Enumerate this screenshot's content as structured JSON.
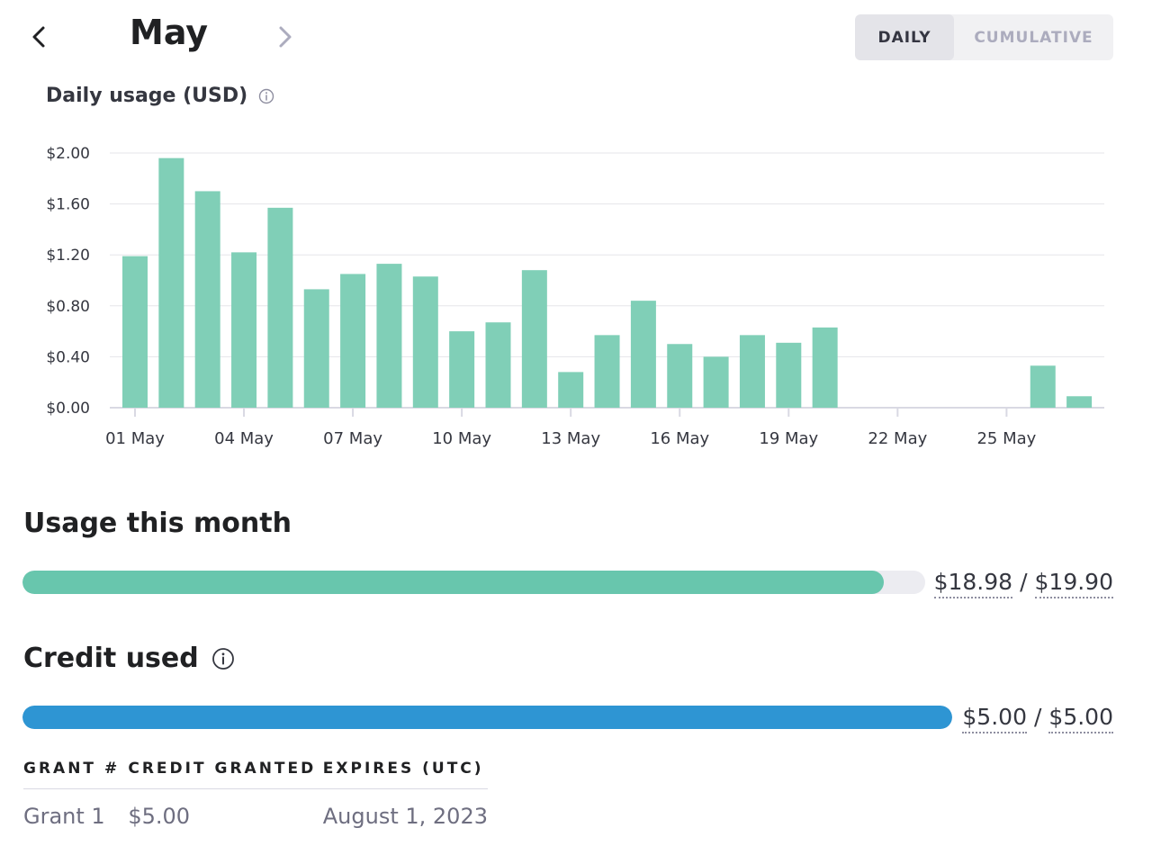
{
  "header": {
    "month": "May",
    "prev_icon": "chevron-left-icon",
    "next_icon": "chevron-right-icon",
    "view_toggle": {
      "daily_label": "DAILY",
      "cumulative_label": "CUMULATIVE",
      "selected": "DAILY"
    }
  },
  "chart_section": {
    "title": "Daily usage (USD)",
    "info_icon": "info-icon"
  },
  "chart_data": {
    "type": "bar",
    "title": "Daily usage (USD)",
    "xlabel": "",
    "ylabel": "",
    "ylim": [
      0,
      2.0
    ],
    "y_ticks": [
      "$0.00",
      "$0.40",
      "$0.80",
      "$1.20",
      "$1.60",
      "$2.00"
    ],
    "y_tick_values": [
      0,
      0.4,
      0.8,
      1.2,
      1.6,
      2.0
    ],
    "x_tick_labels": [
      "01 May",
      "04 May",
      "07 May",
      "10 May",
      "13 May",
      "16 May",
      "19 May",
      "22 May",
      "25 May"
    ],
    "x_tick_days": [
      1,
      4,
      7,
      10,
      13,
      16,
      19,
      22,
      25
    ],
    "days": [
      1,
      2,
      3,
      4,
      5,
      6,
      7,
      8,
      9,
      10,
      11,
      12,
      13,
      14,
      15,
      16,
      17,
      18,
      19,
      20,
      21,
      22,
      23,
      24,
      25,
      26,
      27
    ],
    "values": [
      1.19,
      1.96,
      1.7,
      1.22,
      1.57,
      0.93,
      1.05,
      1.13,
      1.03,
      0.6,
      0.67,
      1.08,
      0.28,
      0.57,
      0.84,
      0.5,
      0.4,
      0.57,
      0.51,
      0.63,
      0,
      0,
      0,
      0,
      0,
      0.33,
      0.09
    ],
    "grid": true,
    "bar_color": "#80cfb7"
  },
  "usage": {
    "title": "Usage this month",
    "used": "$18.98",
    "limit": "$19.90",
    "separator": "/",
    "fraction": 0.9538,
    "bar_color": "#68c6ad"
  },
  "credit": {
    "title": "Credit used",
    "info_icon": "info-icon",
    "used": "$5.00",
    "total": "$5.00",
    "separator": "/",
    "fraction": 1.0,
    "bar_color": "#2e95d3"
  },
  "grants": {
    "headers": [
      "GRANT #",
      "CREDIT GRANTED",
      "EXPIRES (UTC)"
    ],
    "rows": [
      [
        "Grant 1",
        "$5.00",
        "August 1, 2023"
      ]
    ]
  }
}
